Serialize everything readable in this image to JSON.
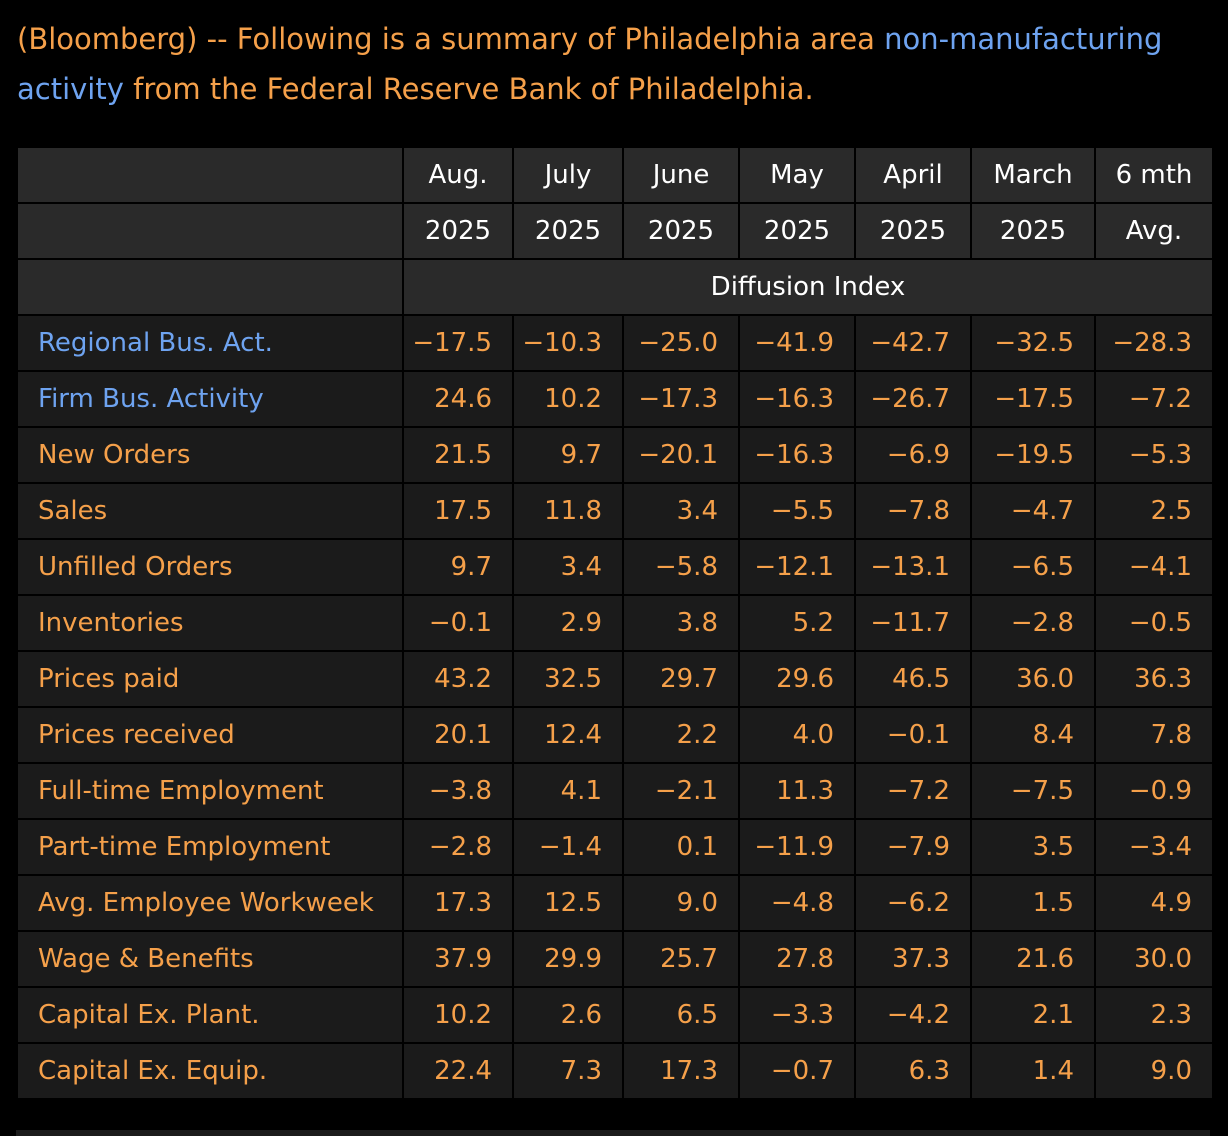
{
  "intro": {
    "prefix": "(Bloomberg) -- Following is a summary of Philadelphia area ",
    "link": "non-manufacturing activity",
    "suffix": " from the Federal Reserve Bank of Philadelphia."
  },
  "columns": [
    {
      "month": "Aug.",
      "year": "2025"
    },
    {
      "month": "July",
      "year": "2025"
    },
    {
      "month": "June",
      "year": "2025"
    },
    {
      "month": "May",
      "year": "2025"
    },
    {
      "month": "April",
      "year": "2025"
    },
    {
      "month": "March",
      "year": "2025"
    },
    {
      "month": "6 mth",
      "year": "Avg."
    }
  ],
  "index_label": "Diffusion Index",
  "rows": [
    {
      "label": "Regional Bus. Act.",
      "link": true,
      "values": [
        "−17.5",
        "−10.3",
        "−25.0",
        "−41.9",
        "−42.7",
        "−32.5",
        "−28.3"
      ]
    },
    {
      "label": "Firm Bus. Activity",
      "link": true,
      "values": [
        "24.6",
        "10.2",
        "−17.3",
        "−16.3",
        "−26.7",
        "−17.5",
        "−7.2"
      ]
    },
    {
      "label": "New Orders",
      "link": false,
      "values": [
        "21.5",
        "9.7",
        "−20.1",
        "−16.3",
        "−6.9",
        "−19.5",
        "−5.3"
      ]
    },
    {
      "label": "Sales",
      "link": false,
      "values": [
        "17.5",
        "11.8",
        "3.4",
        "−5.5",
        "−7.8",
        "−4.7",
        "2.5"
      ]
    },
    {
      "label": "Unfilled Orders",
      "link": false,
      "values": [
        "9.7",
        "3.4",
        "−5.8",
        "−12.1",
        "−13.1",
        "−6.5",
        "−4.1"
      ]
    },
    {
      "label": "Inventories",
      "link": false,
      "values": [
        "−0.1",
        "2.9",
        "3.8",
        "5.2",
        "−11.7",
        "−2.8",
        "−0.5"
      ]
    },
    {
      "label": "Prices paid",
      "link": false,
      "values": [
        "43.2",
        "32.5",
        "29.7",
        "29.6",
        "46.5",
        "36.0",
        "36.3"
      ]
    },
    {
      "label": "Prices received",
      "link": false,
      "values": [
        "20.1",
        "12.4",
        "2.2",
        "4.0",
        "−0.1",
        "8.4",
        "7.8"
      ]
    },
    {
      "label": "Full-time Employment",
      "link": false,
      "values": [
        "−3.8",
        "4.1",
        "−2.1",
        "11.3",
        "−7.2",
        "−7.5",
        "−0.9"
      ]
    },
    {
      "label": "Part-time Employment",
      "link": false,
      "values": [
        "−2.8",
        "−1.4",
        "0.1",
        "−11.9",
        "−7.9",
        "3.5",
        "−3.4"
      ]
    },
    {
      "label": "Avg. Employee Workweek",
      "link": false,
      "values": [
        "17.3",
        "12.5",
        "9.0",
        "−4.8",
        "−6.2",
        "1.5",
        "4.9"
      ]
    },
    {
      "label": "Wage & Benefits",
      "link": false,
      "values": [
        "37.9",
        "29.9",
        "25.7",
        "27.8",
        "37.3",
        "21.6",
        "30.0"
      ]
    },
    {
      "label": "Capital Ex. Plant.",
      "link": false,
      "values": [
        "10.2",
        "2.6",
        "6.5",
        "−3.3",
        "−4.2",
        "2.1",
        "2.3"
      ]
    },
    {
      "label": "Capital Ex. Equip.",
      "link": false,
      "values": [
        "22.4",
        "7.3",
        "17.3",
        "−0.7",
        "6.3",
        "1.4",
        "9.0"
      ]
    }
  ],
  "colors": {
    "background": "#000000",
    "text_orange": "#f5a04a",
    "link_blue": "#6ea3f0",
    "header_bg": "#2a2a2a",
    "row_bg": "#1b1b1b",
    "header_text": "#ffffff"
  }
}
